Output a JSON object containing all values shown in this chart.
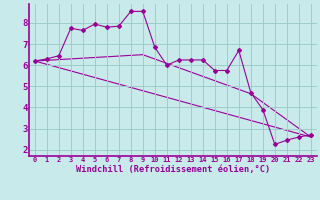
{
  "xlabel": "Windchill (Refroidissement éolien,°C)",
  "bg_color": "#c8eaea",
  "grid_color": "#a0cccc",
  "line_color": "#990099",
  "x_ticks": [
    0,
    1,
    2,
    3,
    4,
    5,
    6,
    7,
    8,
    9,
    10,
    11,
    12,
    13,
    14,
    15,
    16,
    17,
    18,
    19,
    20,
    21,
    22,
    23
  ],
  "y_ticks": [
    2,
    3,
    4,
    5,
    6,
    7,
    8
  ],
  "ylim": [
    1.7,
    8.9
  ],
  "xlim": [
    -0.5,
    23.5
  ],
  "line1_x": [
    0,
    1,
    2,
    3,
    4,
    5,
    6,
    7,
    8,
    9,
    10,
    11,
    12,
    13,
    14,
    15,
    16,
    17,
    18,
    19,
    20,
    21,
    22,
    23
  ],
  "line1_y": [
    6.2,
    6.3,
    6.45,
    7.75,
    7.65,
    7.95,
    7.8,
    7.85,
    8.55,
    8.55,
    6.85,
    6.0,
    6.25,
    6.25,
    6.25,
    5.75,
    5.75,
    6.7,
    4.7,
    3.9,
    2.25,
    2.45,
    2.6,
    2.7
  ],
  "line2_x": [
    0,
    23
  ],
  "line2_y": [
    6.2,
    2.6
  ],
  "line3_x": [
    0,
    9,
    18,
    23
  ],
  "line3_y": [
    6.2,
    6.5,
    4.65,
    2.6
  ]
}
